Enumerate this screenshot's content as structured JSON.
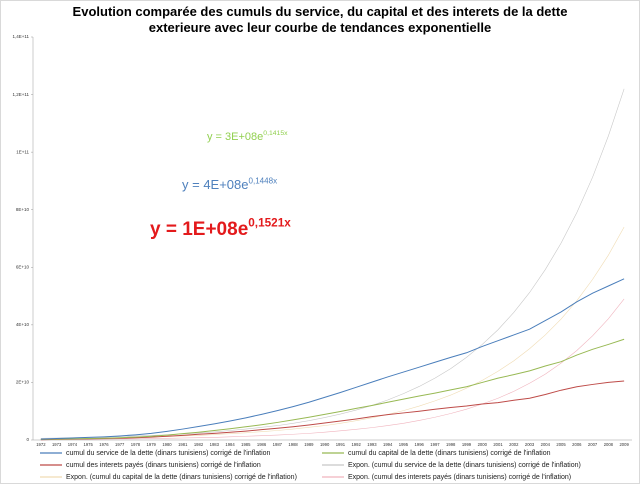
{
  "chart_data": {
    "type": "line",
    "title": "Evolution comparée des cumuls du service, du capital et des  interets de la dette exterieure avec leur courbe de tendances exponentielle",
    "categories": [
      1972,
      1973,
      1974,
      1975,
      1976,
      1977,
      1978,
      1979,
      1980,
      1981,
      1982,
      1983,
      1984,
      1985,
      1986,
      1987,
      1988,
      1989,
      1990,
      1991,
      1992,
      1993,
      1994,
      1995,
      1996,
      1997,
      1998,
      1999,
      2000,
      2001,
      2002,
      2003,
      2004,
      2005,
      2006,
      2007,
      2008,
      2009
    ],
    "ylim": [
      0,
      140000000000.0
    ],
    "yticks": [
      0,
      {
        "value": 20000000000.0,
        "label": "2E+10"
      },
      {
        "value": 40000000000.0,
        "label": "4E+10"
      },
      {
        "value": 60000000000.0,
        "label": "6E+10"
      },
      {
        "value": 80000000000.0,
        "label": "8E+10"
      },
      {
        "value": 100000000000.0,
        "label": "1E+11"
      },
      {
        "value": 120000000000.0,
        "label": "1,2E+11"
      },
      {
        "value": 140000000000.0,
        "label": "1,4E+11"
      }
    ],
    "grid": false,
    "series": [
      {
        "name": "cumul du service de la dette (dinars tunisiens) corrigé de l'inflation",
        "color": "#4a7ebb",
        "width": 1,
        "values": [
          300000000.0,
          500000000.0,
          700000000.0,
          900000000.0,
          1100000000.0,
          1400000000.0,
          1800000000.0,
          2300000000.0,
          3000000000.0,
          3800000000.0,
          4700000000.0,
          5600000000.0,
          6600000000.0,
          7700000000.0,
          8900000000.0,
          10200000000.0,
          11600000000.0,
          13100000000.0,
          14800000000.0,
          16500000000.0,
          18300000000.0,
          20100000000.0,
          21900000000.0,
          23600000000.0,
          25300000000.0,
          27000000000.0,
          28700000000.0,
          30300000000.0,
          32500000000.0,
          34500000000.0,
          36500000000.0,
          38500000000.0,
          41500000000.0,
          44500000000.0,
          48000000000.0,
          51000000000.0,
          53500000000.0,
          56000000000.0
        ]
      },
      {
        "name": "cumul du capital de la dette (dinars tunisiens) corrigé de l'inflation",
        "color": "#98b954",
        "width": 1,
        "values": [
          200000000.0,
          300000000.0,
          400000000.0,
          500000000.0,
          600000000.0,
          800000000.0,
          1000000000.0,
          1300000000.0,
          1700000000.0,
          2200000000.0,
          2700000000.0,
          3300000000.0,
          3900000000.0,
          4600000000.0,
          5300000000.0,
          6100000000.0,
          7000000000.0,
          7900000000.0,
          8900000000.0,
          9900000000.0,
          11000000000.0,
          12000000000.0,
          13100000000.0,
          14200000000.0,
          15300000000.0,
          16300000000.0,
          17400000000.0,
          18500000000.0,
          20000000000.0,
          21500000000.0,
          22700000000.0,
          24000000000.0,
          25700000000.0,
          27200000000.0,
          29500000000.0,
          31500000000.0,
          33200000000.0,
          35000000000.0
        ]
      },
      {
        "name": "cumul des interets payés (dinars tunisiens) corrigé de l'inflation",
        "color": "#be4b48",
        "width": 1,
        "values": [
          100000000.0,
          200000000.0,
          300000000.0,
          400000000.0,
          500000000.0,
          600000000.0,
          800000000.0,
          1000000000.0,
          1300000000.0,
          1600000000.0,
          2000000000.0,
          2300000000.0,
          2700000000.0,
          3100000000.0,
          3600000000.0,
          4100000000.0,
          4600000000.0,
          5200000000.0,
          5900000000.0,
          6600000000.0,
          7300000000.0,
          8100000000.0,
          8800000000.0,
          9400000000.0,
          10000000000.0,
          10700000000.0,
          11300000000.0,
          11800000000.0,
          12500000000.0,
          13000000000.0,
          13800000000.0,
          14500000000.0,
          15800000000.0,
          17300000000.0,
          18500000000.0,
          19300000000.0,
          20000000000.0,
          20500000000.0
        ]
      },
      {
        "name": "Expon. (cumul du service de la dette (dinars tunisiens) corrigé de l'inflation)",
        "color": "#c8c8c8",
        "width": 0.6,
        "values": [
          600000000.0,
          700000000.0,
          800000000.0,
          900000000.0,
          1000000000.0,
          1200000000.0,
          1400000000.0,
          1600000000.0,
          1800000000.0,
          2100000000.0,
          2400000000.0,
          2800000000.0,
          3300000000.0,
          3800000000.0,
          4400000000.0,
          5000000000.0,
          5800000000.0,
          6700000000.0,
          7800000000.0,
          9000000000.0,
          10400000000.0,
          12000000000.0,
          13900000000.0,
          16100000000.0,
          18600000000.0,
          21500000000.0,
          24800000000.0,
          28700000000.0,
          33200000000.0,
          38300000000.0,
          44300000000.0,
          51200000000.0,
          59200000000.0,
          68400000000.0,
          79000000000.0,
          91300000000.0,
          105600000000.0,
          122000000000.0
        ]
      },
      {
        "name": "Expon. (cumul du capital de la dette (dinars tunisiens) corrigé de l'inflation)",
        "color": "#f0dcb4",
        "width": 0.6,
        "values": [
          400000000.0,
          500000000.0,
          500000000.0,
          600000000.0,
          700000000.0,
          800000000.0,
          900000000.0,
          1100000000.0,
          1200000000.0,
          1400000000.0,
          1600000000.0,
          1900000000.0,
          2200000000.0,
          2500000000.0,
          2900000000.0,
          3300000000.0,
          3800000000.0,
          4400000000.0,
          5000000000.0,
          5800000000.0,
          6700000000.0,
          7700000000.0,
          8900000000.0,
          10200000000.0,
          11800000000.0,
          13600000000.0,
          15600000000.0,
          18000000000.0,
          20700000000.0,
          23900000000.0,
          27500000000.0,
          31700000000.0,
          36500000000.0,
          42000000000.0,
          48400000000.0,
          55800000000.0,
          64200000000.0,
          74000000000.0
        ]
      },
      {
        "name": "Expon. (cumul des interets payés (dinars tunisiens) corrigé de l'inflation)",
        "color": "#f0b4be",
        "width": 0.6,
        "values": [
          200000000.0,
          200000000.0,
          200000000.0,
          300000000.0,
          300000000.0,
          400000000.0,
          400000000.0,
          500000000.0,
          600000000.0,
          700000000.0,
          800000000.0,
          900000000.0,
          1100000000.0,
          1300000000.0,
          1500000000.0,
          1700000000.0,
          2000000000.0,
          2300000000.0,
          2700000000.0,
          3200000000.0,
          3700000000.0,
          4300000000.0,
          5000000000.0,
          5800000000.0,
          6800000000.0,
          7900000000.0,
          9200000000.0,
          10700000000.0,
          12500000000.0,
          14500000000.0,
          16900000000.0,
          19700000000.0,
          22900000000.0,
          26700000000.0,
          31100000000.0,
          36200000000.0,
          42100000000.0,
          49000000000.0
        ]
      }
    ],
    "annotations": [
      {
        "text": "y = 3E+08e",
        "sup": "0,1415x",
        "color": "#92d050"
      },
      {
        "text": "y = 4E+08e",
        "sup": "0,1448x",
        "color": "#4f81bd"
      },
      {
        "text": "y = 1E+08e",
        "sup": "0,1521x",
        "color": "#e31a1c"
      }
    ]
  }
}
